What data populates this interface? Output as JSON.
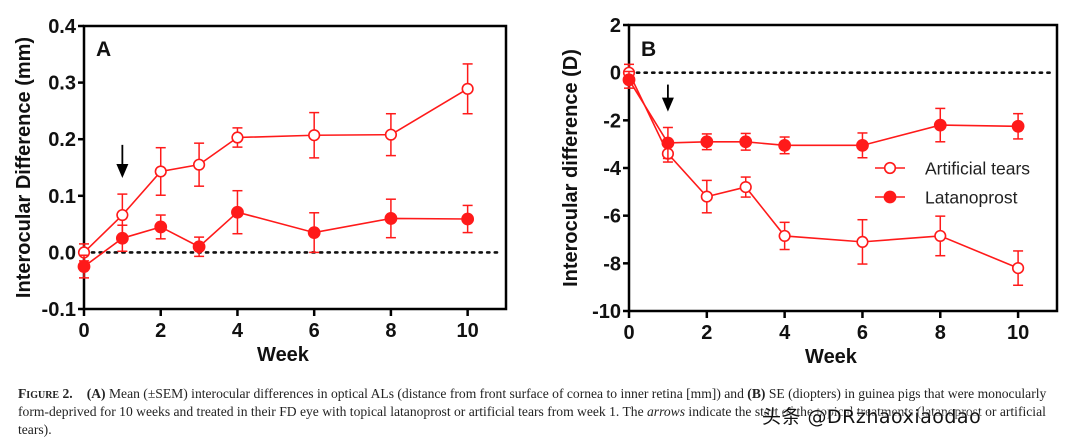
{
  "chart_data": [
    {
      "type": "line",
      "panel_label": "A",
      "title": "",
      "xlabel": "Week",
      "ylabel": "Interocular Difference (mm)",
      "x": [
        0,
        1,
        2,
        3,
        4,
        6,
        8,
        10
      ],
      "xlim": [
        0,
        11
      ],
      "ylim": [
        -0.1,
        0.4
      ],
      "xticks": [
        0,
        2,
        4,
        6,
        8,
        10
      ],
      "xtick_labels": [
        "0",
        "2",
        "4",
        "6",
        "8",
        "10"
      ],
      "yticks": [
        -0.1,
        0.0,
        0.1,
        0.2,
        0.3,
        0.4
      ],
      "ytick_labels": [
        "-0.1",
        "0.0",
        "0.1",
        "0.2",
        "0.3",
        "0.4"
      ],
      "reference_line": {
        "y": 0,
        "style": "dotted"
      },
      "arrow_at_week": 1,
      "grid": false,
      "series": [
        {
          "name": "Artificial tears",
          "marker": "open-circle",
          "values": [
            0.0,
            0.066,
            0.143,
            0.155,
            0.203,
            0.207,
            0.208,
            0.289
          ],
          "errors": [
            0.015,
            0.037,
            0.042,
            0.038,
            0.017,
            0.04,
            0.037,
            0.044
          ]
        },
        {
          "name": "Latanoprost",
          "marker": "filled-circle",
          "values": [
            -0.025,
            0.025,
            0.045,
            0.01,
            0.071,
            0.035,
            0.06,
            0.059
          ],
          "errors": [
            0.02,
            0.023,
            0.021,
            0.017,
            0.038,
            0.035,
            0.034,
            0.024
          ]
        }
      ]
    },
    {
      "type": "line",
      "panel_label": "B",
      "title": "",
      "xlabel": "Week",
      "ylabel": "Interocular difference (D)",
      "x": [
        0,
        1,
        2,
        3,
        4,
        6,
        8,
        10
      ],
      "xlim": [
        0,
        11
      ],
      "ylim": [
        -10,
        2
      ],
      "xticks": [
        0,
        2,
        4,
        6,
        8,
        10
      ],
      "xtick_labels": [
        "0",
        "2",
        "4",
        "6",
        "8",
        "10"
      ],
      "yticks": [
        -10,
        -8,
        -6,
        -4,
        -2,
        0,
        2
      ],
      "ytick_labels": [
        "-10",
        "-8",
        "-6",
        "-4",
        "-2",
        "0",
        "2"
      ],
      "reference_line": {
        "y": 0,
        "style": "dotted"
      },
      "arrow_at_week": 1,
      "grid": false,
      "legend_position": "center-right",
      "legend": [
        "Artificial tears",
        "Latanoprost"
      ],
      "series": [
        {
          "name": "Artificial tears",
          "marker": "open-circle",
          "values": [
            0.0,
            -3.4,
            -5.2,
            -4.8,
            -6.85,
            -7.1,
            -6.85,
            -8.2
          ],
          "errors": [
            0.35,
            0.35,
            0.68,
            0.42,
            0.57,
            0.93,
            0.83,
            0.72
          ]
        },
        {
          "name": "Latanoprost",
          "marker": "filled-circle",
          "values": [
            -0.3,
            -2.95,
            -2.9,
            -2.9,
            -3.05,
            -3.05,
            -2.2,
            -2.25
          ],
          "errors": [
            0.35,
            0.65,
            0.33,
            0.35,
            0.35,
            0.52,
            0.7,
            0.53
          ]
        }
      ]
    }
  ],
  "colors": {
    "series": "#ff1a1a",
    "axis": "#000000",
    "text": "#222222"
  },
  "caption": {
    "figure_label": "Figure 2.",
    "part_a_label": "(A)",
    "part_a_text": " Mean (±SEM) interocular differences in optical ALs (distance from front surface of cornea to inner retina [mm]) and ",
    "part_b_label": "(B)",
    "part_b_text": " SE (diopters) in guinea pigs that were monocularly form-deprived for 10 weeks and treated in their FD eye with topical latanoprost or artificial tears from week 1. The ",
    "arrows_word": "arrows",
    "tail_text": " indicate the start of the topical treatments (latanoprost or artificial tears)."
  },
  "watermark": "头条 @DRzhaoxiaodao"
}
